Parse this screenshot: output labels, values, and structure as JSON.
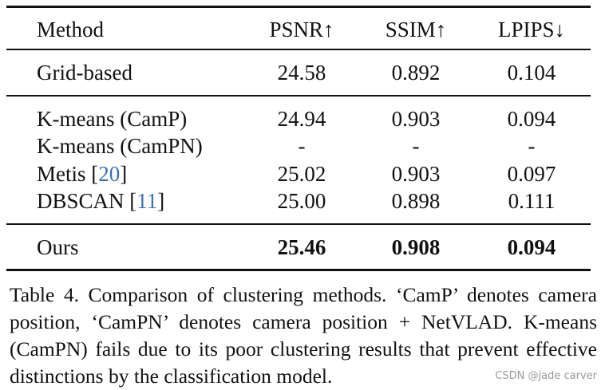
{
  "table": {
    "header": [
      "Method",
      "PSNR↑",
      "SSIM↑",
      "LPIPS↓"
    ],
    "groups": [
      {
        "rows": [
          {
            "method": [
              "Grid-based"
            ],
            "values": [
              "24.58",
              "0.892",
              "0.104"
            ]
          }
        ]
      },
      {
        "rows": [
          {
            "method": [
              "K-means (CamP)"
            ],
            "values": [
              "24.94",
              "0.903",
              "0.094"
            ]
          },
          {
            "method": [
              "K-means (CamPN)"
            ],
            "values": [
              "-",
              "-",
              "-"
            ]
          },
          {
            "method": [
              "Metis [",
              "20",
              "]"
            ],
            "values": [
              "25.02",
              "0.903",
              "0.097"
            ]
          },
          {
            "method": [
              "DBSCAN [",
              "11",
              "]"
            ],
            "values": [
              "25.00",
              "0.898",
              "0.111"
            ]
          }
        ]
      },
      {
        "rows": [
          {
            "method": [
              "Ours"
            ],
            "values": [
              "25.46",
              "0.908",
              "0.094"
            ],
            "bold": true
          }
        ]
      }
    ]
  },
  "caption": "Table 4. Comparison of clustering methods. ‘CamP’ denotes camera position, ‘CamPN’ denotes camera position + NetVLAD. K-means (CamPN) fails due to its poor clustering results that prevent effective distinctions by the classification model.",
  "watermark": "CSDN @jade carver"
}
